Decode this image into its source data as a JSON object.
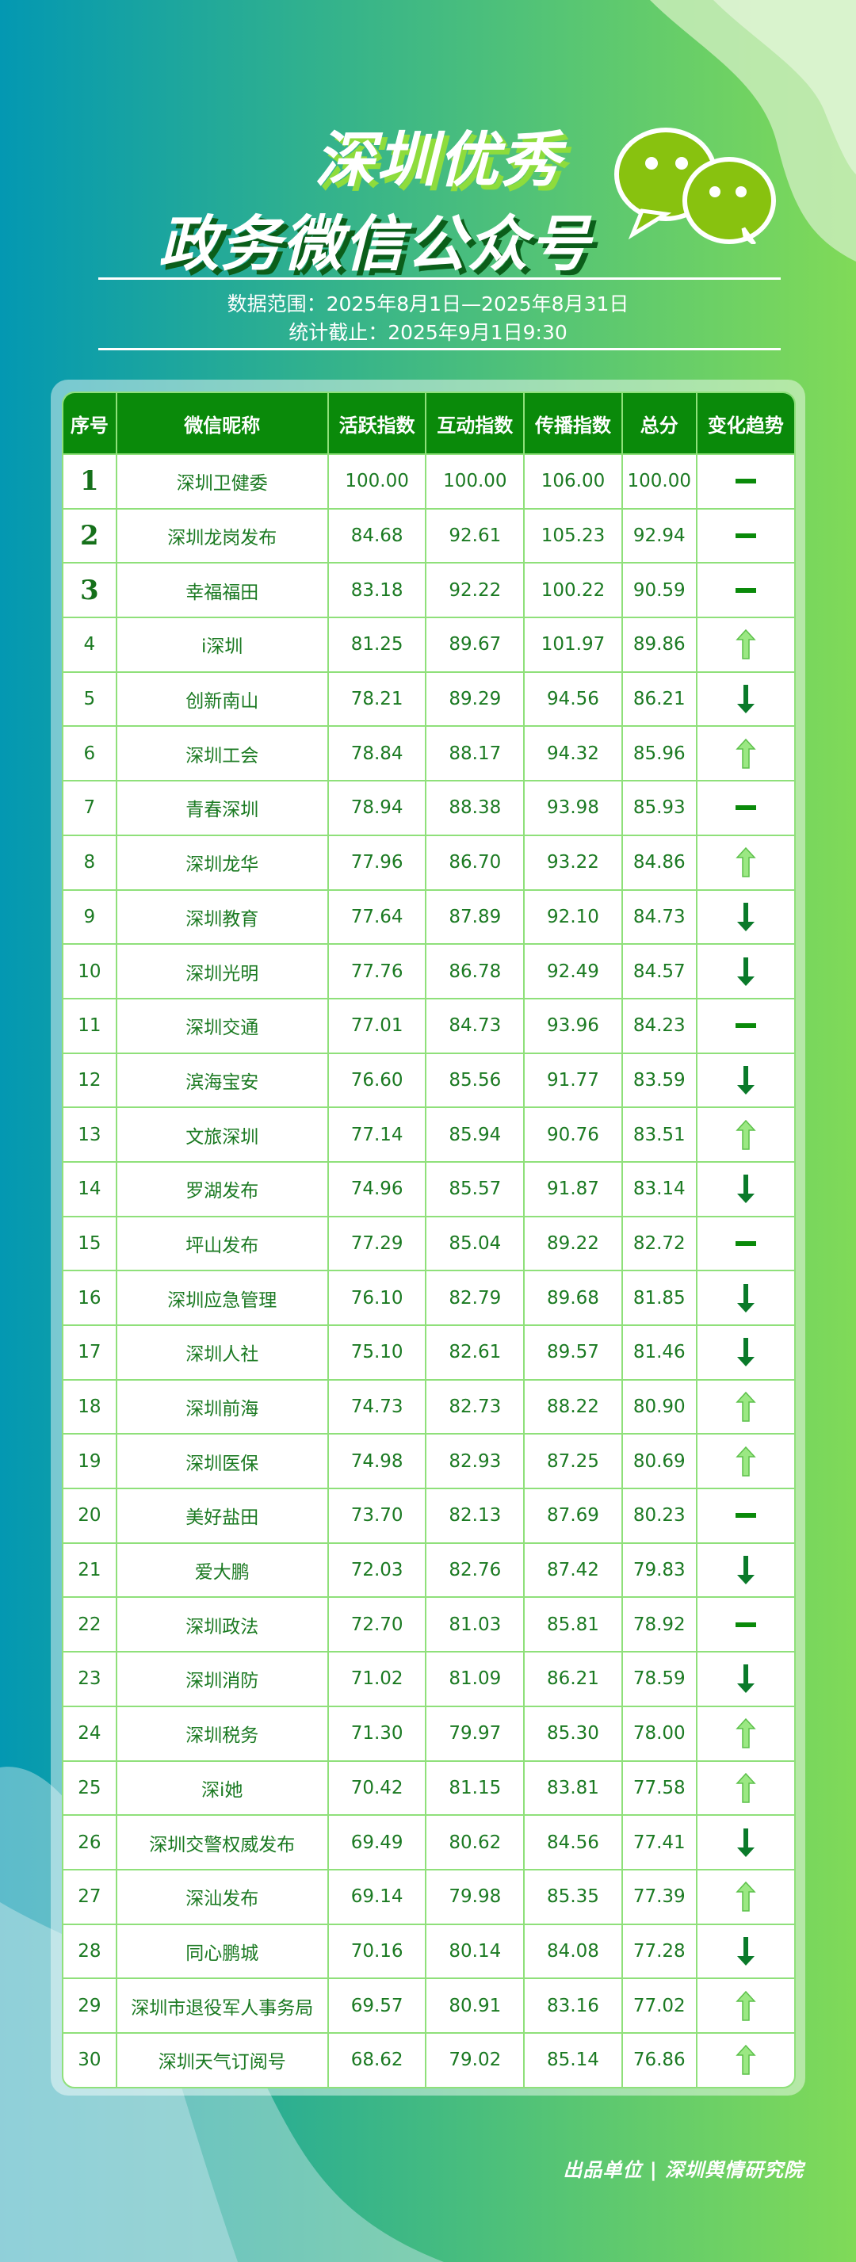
{
  "header": {
    "title_line1": "深圳优秀",
    "title_line2": "政务微信公众号",
    "data_range": "数据范围：2025年8月1日—2025年8月31日",
    "cutoff": "统计截止：2025年9月1日9:30",
    "logo_icon": "wechat-icon"
  },
  "colors": {
    "header_bg": "#0a8a0a",
    "grid": "#8fe07a",
    "up": "#8fe07a",
    "down": "#0a7a2a",
    "flat": "#0a8a0a",
    "text": "#1b7a22"
  },
  "table": {
    "columns": [
      "序号",
      "微信昵称",
      "活跃指数",
      "互动指数",
      "传播指数",
      "总分",
      "变化趋势"
    ],
    "rows": [
      {
        "rank": "1",
        "name": "深圳卫健委",
        "active": "100.00",
        "interact": "100.00",
        "spread": "106.00",
        "total": "100.00",
        "trend": "flat"
      },
      {
        "rank": "2",
        "name": "深圳龙岗发布",
        "active": "84.68",
        "interact": "92.61",
        "spread": "105.23",
        "total": "92.94",
        "trend": "flat"
      },
      {
        "rank": "3",
        "name": "幸福福田",
        "active": "83.18",
        "interact": "92.22",
        "spread": "100.22",
        "total": "90.59",
        "trend": "flat"
      },
      {
        "rank": "4",
        "name": "i深圳",
        "active": "81.25",
        "interact": "89.67",
        "spread": "101.97",
        "total": "89.86",
        "trend": "up"
      },
      {
        "rank": "5",
        "name": "创新南山",
        "active": "78.21",
        "interact": "89.29",
        "spread": "94.56",
        "total": "86.21",
        "trend": "down"
      },
      {
        "rank": "6",
        "name": "深圳工会",
        "active": "78.84",
        "interact": "88.17",
        "spread": "94.32",
        "total": "85.96",
        "trend": "up"
      },
      {
        "rank": "7",
        "name": "青春深圳",
        "active": "78.94",
        "interact": "88.38",
        "spread": "93.98",
        "total": "85.93",
        "trend": "flat"
      },
      {
        "rank": "8",
        "name": "深圳龙华",
        "active": "77.96",
        "interact": "86.70",
        "spread": "93.22",
        "total": "84.86",
        "trend": "up"
      },
      {
        "rank": "9",
        "name": "深圳教育",
        "active": "77.64",
        "interact": "87.89",
        "spread": "92.10",
        "total": "84.73",
        "trend": "down"
      },
      {
        "rank": "10",
        "name": "深圳光明",
        "active": "77.76",
        "interact": "86.78",
        "spread": "92.49",
        "total": "84.57",
        "trend": "down"
      },
      {
        "rank": "11",
        "name": "深圳交通",
        "active": "77.01",
        "interact": "84.73",
        "spread": "93.96",
        "total": "84.23",
        "trend": "flat"
      },
      {
        "rank": "12",
        "name": "滨海宝安",
        "active": "76.60",
        "interact": "85.56",
        "spread": "91.77",
        "total": "83.59",
        "trend": "down"
      },
      {
        "rank": "13",
        "name": "文旅深圳",
        "active": "77.14",
        "interact": "85.94",
        "spread": "90.76",
        "total": "83.51",
        "trend": "up"
      },
      {
        "rank": "14",
        "name": "罗湖发布",
        "active": "74.96",
        "interact": "85.57",
        "spread": "91.87",
        "total": "83.14",
        "trend": "down"
      },
      {
        "rank": "15",
        "name": "坪山发布",
        "active": "77.29",
        "interact": "85.04",
        "spread": "89.22",
        "total": "82.72",
        "trend": "flat"
      },
      {
        "rank": "16",
        "name": "深圳应急管理",
        "active": "76.10",
        "interact": "82.79",
        "spread": "89.68",
        "total": "81.85",
        "trend": "down"
      },
      {
        "rank": "17",
        "name": "深圳人社",
        "active": "75.10",
        "interact": "82.61",
        "spread": "89.57",
        "total": "81.46",
        "trend": "down"
      },
      {
        "rank": "18",
        "name": "深圳前海",
        "active": "74.73",
        "interact": "82.73",
        "spread": "88.22",
        "total": "80.90",
        "trend": "up"
      },
      {
        "rank": "19",
        "name": "深圳医保",
        "active": "74.98",
        "interact": "82.93",
        "spread": "87.25",
        "total": "80.69",
        "trend": "up"
      },
      {
        "rank": "20",
        "name": "美好盐田",
        "active": "73.70",
        "interact": "82.13",
        "spread": "87.69",
        "total": "80.23",
        "trend": "flat"
      },
      {
        "rank": "21",
        "name": "爱大鹏",
        "active": "72.03",
        "interact": "82.76",
        "spread": "87.42",
        "total": "79.83",
        "trend": "down"
      },
      {
        "rank": "22",
        "name": "深圳政法",
        "active": "72.70",
        "interact": "81.03",
        "spread": "85.81",
        "total": "78.92",
        "trend": "flat"
      },
      {
        "rank": "23",
        "name": "深圳消防",
        "active": "71.02",
        "interact": "81.09",
        "spread": "86.21",
        "total": "78.59",
        "trend": "down"
      },
      {
        "rank": "24",
        "name": "深圳税务",
        "active": "71.30",
        "interact": "79.97",
        "spread": "85.30",
        "total": "78.00",
        "trend": "up"
      },
      {
        "rank": "25",
        "name": "深i她",
        "active": "70.42",
        "interact": "81.15",
        "spread": "83.81",
        "total": "77.58",
        "trend": "up"
      },
      {
        "rank": "26",
        "name": "深圳交警权威发布",
        "active": "69.49",
        "interact": "80.62",
        "spread": "84.56",
        "total": "77.41",
        "trend": "down"
      },
      {
        "rank": "27",
        "name": "深汕发布",
        "active": "69.14",
        "interact": "79.98",
        "spread": "85.35",
        "total": "77.39",
        "trend": "up"
      },
      {
        "rank": "28",
        "name": "同心鹏城",
        "active": "70.16",
        "interact": "80.14",
        "spread": "84.08",
        "total": "77.28",
        "trend": "down"
      },
      {
        "rank": "29",
        "name": "深圳市退役军人事务局",
        "active": "69.57",
        "interact": "80.91",
        "spread": "83.16",
        "total": "77.02",
        "trend": "up"
      },
      {
        "rank": "30",
        "name": "深圳天气订阅号",
        "active": "68.62",
        "interact": "79.02",
        "spread": "85.14",
        "total": "76.86",
        "trend": "up"
      }
    ]
  },
  "footer": {
    "credit": "出品单位 | 深圳舆情研究院"
  }
}
